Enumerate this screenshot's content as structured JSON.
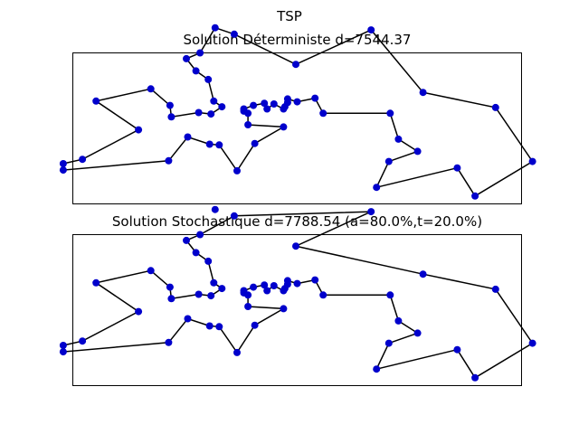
{
  "figure": {
    "suptitle": "TSP"
  },
  "chart_data": [
    {
      "type": "line",
      "title": "Solution Déterministe d=7544.37",
      "grid": false,
      "xlim": [
        60,
        1700
      ],
      "ylim": [
        -50,
        1000
      ],
      "line_color": "#000000",
      "marker_color": "#0000cc",
      "tour": [
        [
          565,
          575
        ],
        [
          25,
          185
        ],
        [
          345,
          750
        ],
        [
          945,
          685
        ],
        [
          845,
          655
        ],
        [
          880,
          660
        ],
        [
          25,
          230
        ],
        [
          525,
          1000
        ],
        [
          580,
          1175
        ],
        [
          650,
          1130
        ],
        [
          1605,
          620
        ],
        [
          1220,
          580
        ],
        [
          1465,
          200
        ],
        [
          1530,
          5
        ],
        [
          845,
          680
        ],
        [
          725,
          370
        ],
        [
          145,
          665
        ],
        [
          415,
          635
        ],
        [
          510,
          875
        ],
        [
          560,
          365
        ],
        [
          300,
          465
        ],
        [
          520,
          585
        ],
        [
          480,
          415
        ],
        [
          835,
          625
        ],
        [
          975,
          580
        ],
        [
          1215,
          245
        ],
        [
          1320,
          315
        ],
        [
          1250,
          400
        ],
        [
          660,
          180
        ],
        [
          410,
          250
        ],
        [
          420,
          555
        ],
        [
          575,
          665
        ],
        [
          1150,
          1160
        ],
        [
          700,
          580
        ],
        [
          685,
          595
        ],
        [
          685,
          610
        ],
        [
          770,
          610
        ],
        [
          795,
          645
        ],
        [
          720,
          635
        ],
        [
          760,
          650
        ],
        [
          475,
          960
        ],
        [
          95,
          260
        ],
        [
          875,
          920
        ],
        [
          700,
          500
        ],
        [
          555,
          815
        ],
        [
          830,
          485
        ],
        [
          1170,
          65
        ],
        [
          830,
          610
        ],
        [
          605,
          625
        ],
        [
          595,
          360
        ],
        [
          1340,
          725
        ],
        [
          1740,
          245
        ]
      ],
      "order": [
        0,
        48,
        31,
        44,
        18,
        40,
        7,
        8,
        9,
        42,
        32,
        50,
        10,
        51,
        13,
        12,
        46,
        25,
        26,
        27,
        11,
        24,
        3,
        5,
        14,
        4,
        23,
        47,
        37,
        36,
        39,
        38,
        35,
        34,
        33,
        43,
        45,
        15,
        28,
        49,
        19,
        22,
        29,
        1,
        6,
        41,
        20,
        16,
        2,
        17,
        30,
        21,
        0
      ]
    },
    {
      "type": "line",
      "title": "Solution Stochastique d=7788.54 (a=80.0%,t=20.0%)",
      "grid": false,
      "xlim": [
        60,
        1700
      ],
      "ylim": [
        -50,
        1000
      ],
      "line_color": "#000000",
      "marker_color": "#0000cc",
      "tour": [
        [
          565,
          575
        ],
        [
          25,
          185
        ],
        [
          345,
          750
        ],
        [
          945,
          685
        ],
        [
          845,
          655
        ],
        [
          880,
          660
        ],
        [
          25,
          230
        ],
        [
          525,
          1000
        ],
        [
          580,
          1175
        ],
        [
          650,
          1130
        ],
        [
          1605,
          620
        ],
        [
          1220,
          580
        ],
        [
          1465,
          200
        ],
        [
          1530,
          5
        ],
        [
          845,
          680
        ],
        [
          725,
          370
        ],
        [
          145,
          665
        ],
        [
          415,
          635
        ],
        [
          510,
          875
        ],
        [
          560,
          365
        ],
        [
          300,
          465
        ],
        [
          520,
          585
        ],
        [
          480,
          415
        ],
        [
          835,
          625
        ],
        [
          975,
          580
        ],
        [
          1215,
          245
        ],
        [
          1320,
          315
        ],
        [
          1250,
          400
        ],
        [
          660,
          180
        ],
        [
          410,
          250
        ],
        [
          420,
          555
        ],
        [
          575,
          665
        ],
        [
          1150,
          1160
        ],
        [
          700,
          580
        ],
        [
          685,
          595
        ],
        [
          685,
          610
        ],
        [
          770,
          610
        ],
        [
          795,
          645
        ],
        [
          720,
          635
        ],
        [
          760,
          650
        ],
        [
          475,
          960
        ],
        [
          95,
          260
        ],
        [
          875,
          920
        ],
        [
          700,
          500
        ],
        [
          555,
          815
        ],
        [
          830,
          485
        ],
        [
          1170,
          65
        ],
        [
          830,
          610
        ],
        [
          605,
          625
        ],
        [
          595,
          360
        ],
        [
          1340,
          725
        ],
        [
          1740,
          245
        ]
      ],
      "order": [
        0,
        48,
        31,
        44,
        18,
        40,
        7,
        9,
        32,
        42,
        50,
        10,
        51,
        13,
        12,
        46,
        25,
        26,
        27,
        11,
        24,
        3,
        5,
        14,
        4,
        23,
        47,
        37,
        36,
        39,
        38,
        35,
        34,
        33,
        43,
        45,
        15,
        28,
        49,
        19,
        22,
        29,
        1,
        6,
        41,
        20,
        16,
        2,
        17,
        30,
        21,
        0
      ]
    }
  ]
}
